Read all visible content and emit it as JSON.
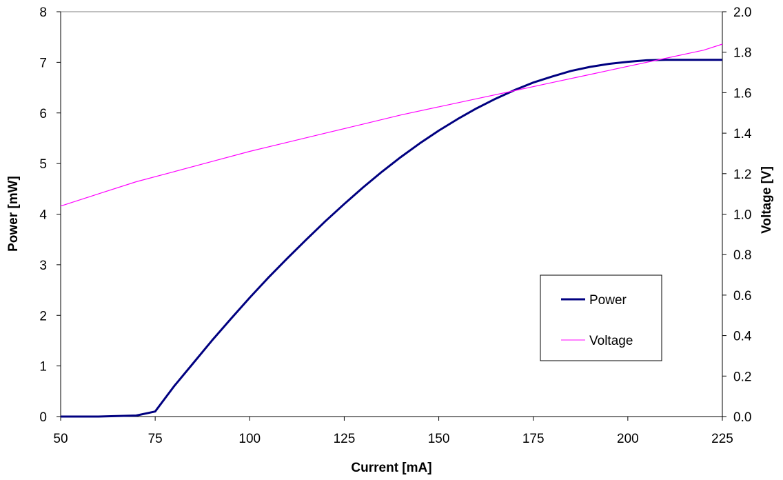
{
  "chart_data": {
    "type": "line",
    "xlabel": "Current [mA]",
    "ylabel": "Power [mW]",
    "y2label": "Voltage [V]",
    "xlim": [
      50,
      225
    ],
    "ylim": [
      0,
      8
    ],
    "y2lim": [
      0,
      2.0
    ],
    "x_ticks": [
      "50",
      "75",
      "100",
      "125",
      "150",
      "175",
      "200",
      "225"
    ],
    "y_ticks": [
      "0",
      "1",
      "2",
      "3",
      "4",
      "5",
      "6",
      "7",
      "8"
    ],
    "y2_ticks": [
      "0.0",
      "0.2",
      "0.4",
      "0.6",
      "0.8",
      "1.0",
      "1.2",
      "1.4",
      "1.6",
      "1.8",
      "2.0"
    ],
    "grid": false,
    "legend_position": "bottom-right",
    "series": [
      {
        "name": "Power",
        "axis": "left",
        "color": "#000080",
        "x": [
          50,
          55,
          60,
          65,
          70,
          75,
          80,
          85,
          90,
          95,
          100,
          105,
          110,
          115,
          120,
          125,
          130,
          135,
          140,
          145,
          150,
          155,
          160,
          165,
          170,
          175,
          180,
          185,
          190,
          195,
          200,
          205,
          210,
          215,
          220,
          225
        ],
        "values": [
          0.0,
          0.0,
          0.0,
          0.01,
          0.02,
          0.1,
          0.6,
          1.05,
          1.5,
          1.93,
          2.35,
          2.75,
          3.13,
          3.5,
          3.86,
          4.2,
          4.53,
          4.84,
          5.13,
          5.4,
          5.65,
          5.88,
          6.09,
          6.28,
          6.45,
          6.6,
          6.72,
          6.83,
          6.91,
          6.97,
          7.01,
          7.04,
          7.05,
          7.05,
          7.05,
          7.05
        ]
      },
      {
        "name": "Voltage",
        "axis": "right",
        "color": "#ff00ff",
        "x": [
          50,
          60,
          70,
          80,
          90,
          100,
          110,
          120,
          130,
          140,
          150,
          160,
          170,
          180,
          190,
          200,
          210,
          220,
          225
        ],
        "values": [
          1.04,
          1.1,
          1.16,
          1.21,
          1.26,
          1.31,
          1.355,
          1.4,
          1.445,
          1.49,
          1.53,
          1.57,
          1.61,
          1.65,
          1.69,
          1.73,
          1.77,
          1.81,
          1.84
        ]
      }
    ]
  }
}
